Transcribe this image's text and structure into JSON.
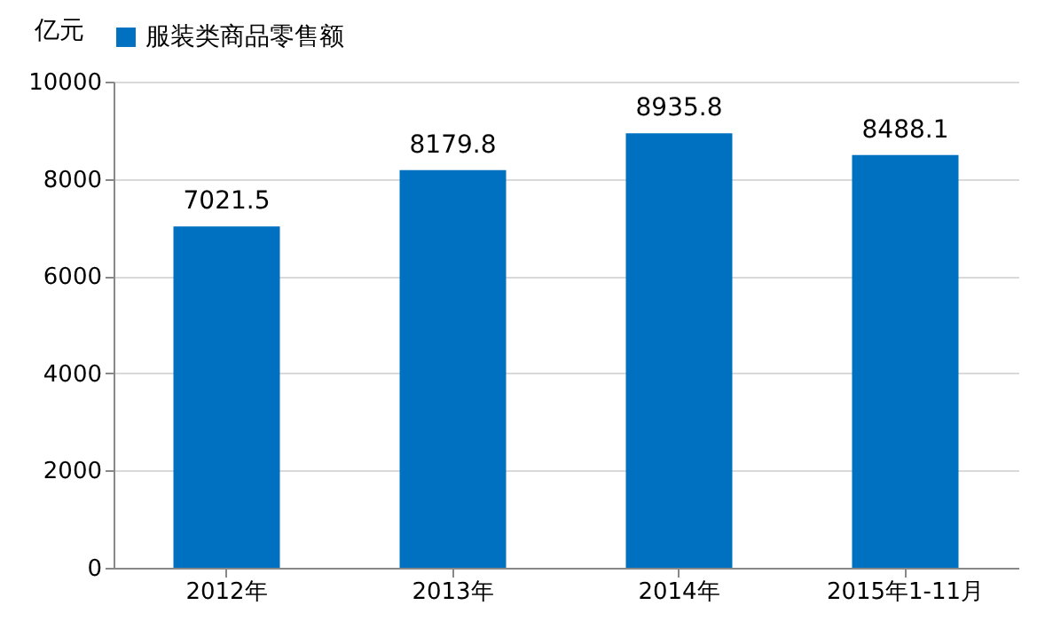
{
  "chart_data": {
    "type": "bar",
    "ylabel": "亿元",
    "categories": [
      "2012年",
      "2013年",
      "2014年",
      "2015年1-11月"
    ],
    "series": [
      {
        "name": "服装类商品零售额",
        "color": "#0070c0",
        "values": [
          7021.5,
          8179.8,
          8935.8,
          8488.1
        ]
      }
    ],
    "ylim": [
      0,
      10000
    ],
    "yticks": [
      0,
      2000,
      4000,
      6000,
      8000,
      10000
    ],
    "grid": "y",
    "legend": "top",
    "data_labels": true
  }
}
